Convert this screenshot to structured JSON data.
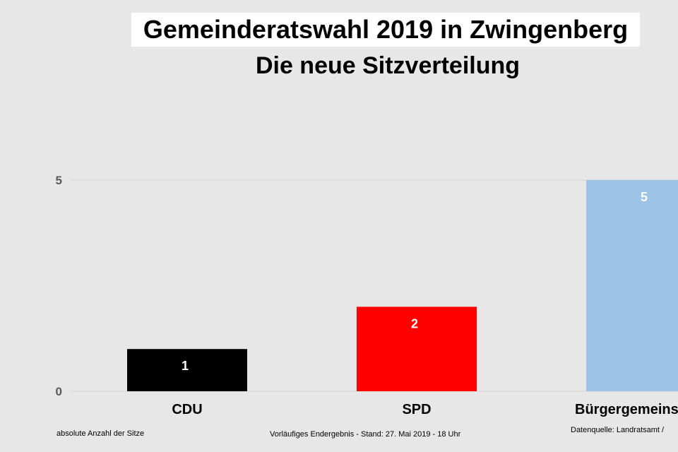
{
  "chart_data": {
    "type": "bar",
    "title": "Gemeinderatswahl 2019 in Zwingenberg",
    "subtitle": "Die neue Sitzverteilung",
    "categories": [
      "CDU",
      "SPD",
      "Bürgergemeins"
    ],
    "values": [
      1,
      2,
      5
    ],
    "colors": [
      "#000000",
      "#ff0000",
      "#9dc3e6"
    ],
    "data_labels": [
      "1",
      "2",
      "5"
    ],
    "yticks": [
      "0",
      "5"
    ],
    "ylim": [
      0,
      5
    ],
    "grid": true,
    "ylabel": "absolute Anzahl der Sitze"
  },
  "footer": {
    "note_left": "absolute Anzahl der Sitze",
    "note_center": "Vorläufiges Endergebnis - Stand: 27. Mai 2019  - 18 Uhr",
    "note_right": "Datenquelle: Landratsamt /"
  }
}
